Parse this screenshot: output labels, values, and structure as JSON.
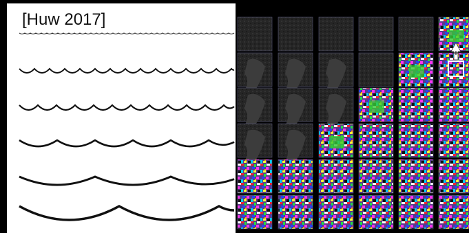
{
  "header": {
    "citation": "[Huw 2017]"
  }
}
